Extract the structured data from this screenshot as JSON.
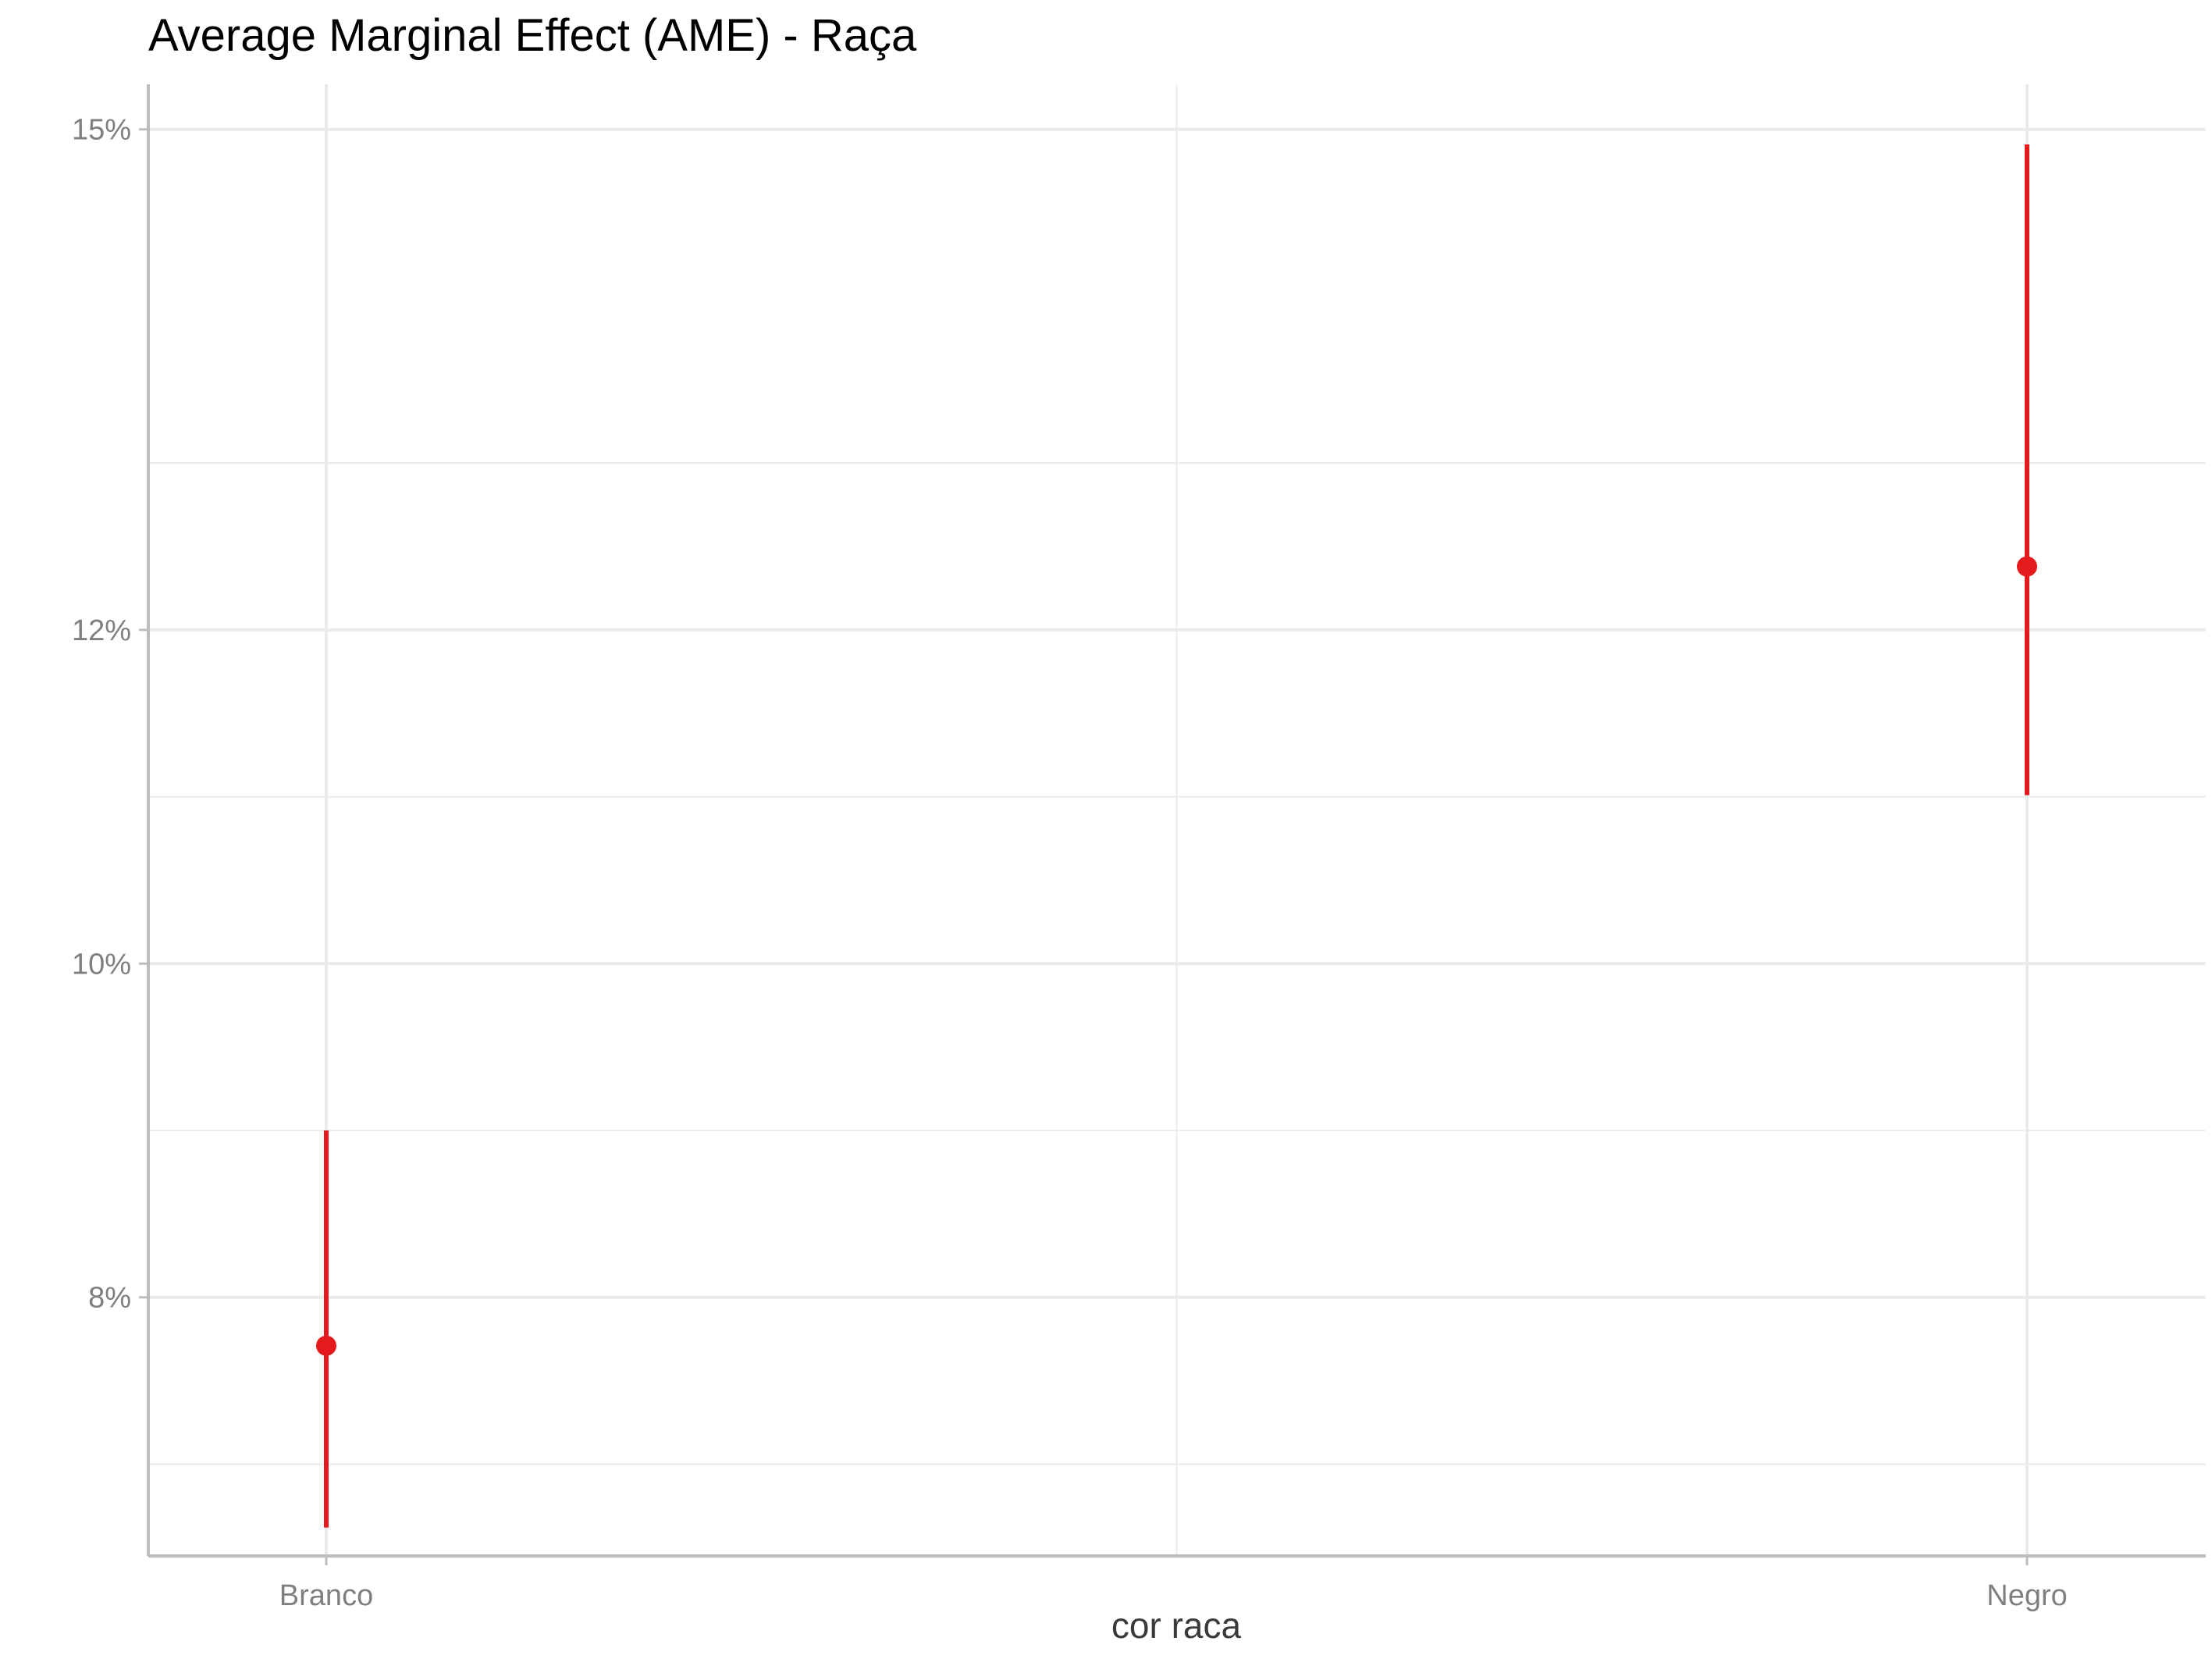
{
  "chart_data": {
    "type": "pointrange",
    "title": "Average Marginal Effect (AME) - Raça",
    "xlabel": "cor raca",
    "ylabel": "",
    "categories": [
      "Branco",
      "Negro"
    ],
    "estimates": [
      0.0771,
      0.1238
    ],
    "ci_lower": [
      0.0662,
      0.1101
    ],
    "ci_upper": [
      0.09,
      0.1491
    ],
    "ylim": [
      0.0645,
      0.1527
    ],
    "y_ticks": [
      0.08,
      0.1,
      0.12,
      0.15
    ],
    "y_tick_labels": [
      "8%",
      "10%",
      "12%",
      "15%"
    ],
    "y_minor_ticks": [
      0.07,
      0.09,
      0.11,
      0.13
    ],
    "grid": true,
    "legend": "none",
    "colors": {
      "series": "#e41a1c",
      "grid": "#ebebeb",
      "axis": "#bdbdbd",
      "tick_text": "#7f7f7f",
      "title_text": "#000000"
    }
  }
}
